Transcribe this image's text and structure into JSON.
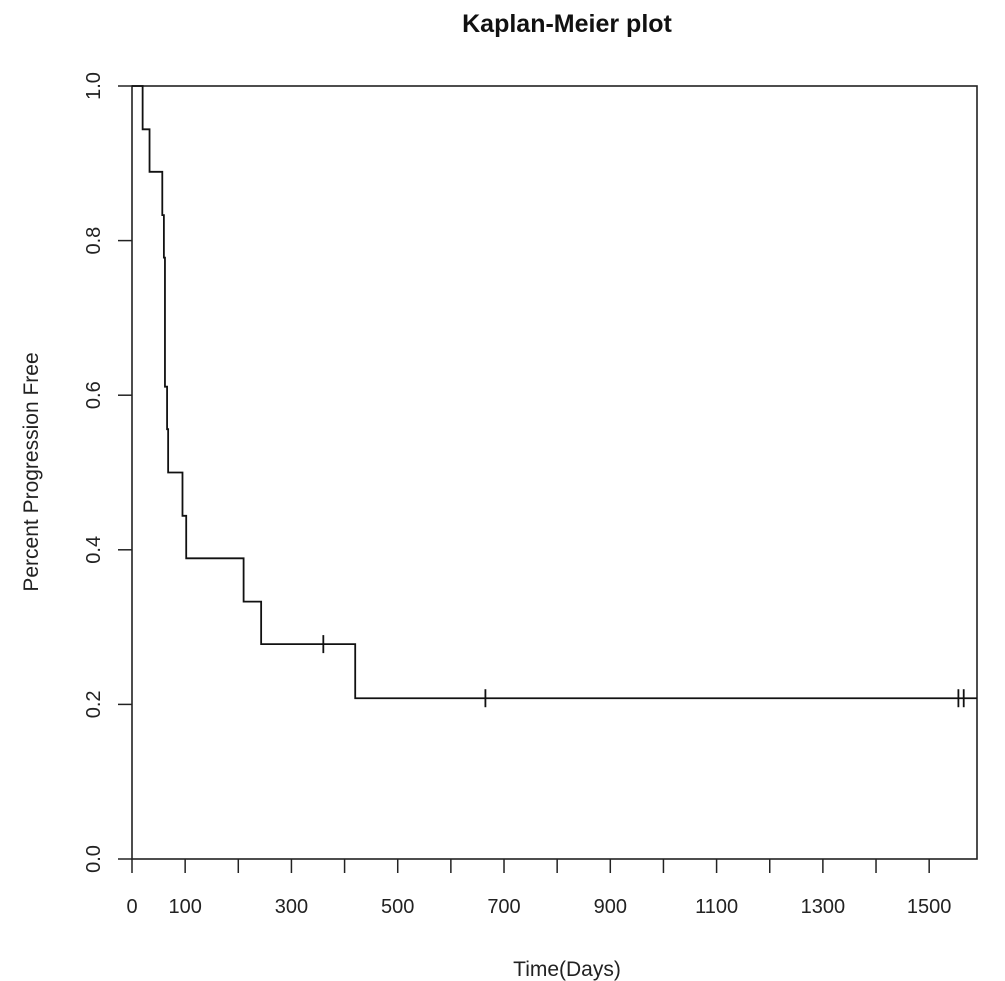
{
  "chart_data": {
    "type": "line",
    "title": "Kaplan-Meier plot",
    "xlabel": "Time(Days)",
    "ylabel": "Percent Progression Free",
    "xlim": [
      0,
      1590
    ],
    "ylim": [
      0,
      1.0
    ],
    "x_ticks": [
      0,
      100,
      200,
      300,
      400,
      500,
      600,
      700,
      800,
      900,
      1000,
      1100,
      1200,
      1300,
      1400,
      1500
    ],
    "x_tick_labels": [
      "0",
      "100",
      "",
      "300",
      "",
      "500",
      "",
      "700",
      "",
      "900",
      "",
      "1100",
      "",
      "1300",
      "",
      "1500"
    ],
    "y_ticks": [
      0.0,
      0.2,
      0.4,
      0.6,
      0.8,
      1.0
    ],
    "y_tick_labels": [
      "0.0",
      "0.2",
      "0.4",
      "0.6",
      "0.8",
      "1.0"
    ],
    "grid": false,
    "legend": "none",
    "line_color": "#111111",
    "series": [
      {
        "step_times": [
          0,
          20,
          33,
          57,
          60,
          62,
          66,
          68,
          95,
          102,
          210,
          243,
          420,
          1590
        ],
        "survival": [
          1.0,
          0.944,
          0.889,
          0.833,
          0.778,
          0.611,
          0.556,
          0.5,
          0.444,
          0.389,
          0.333,
          0.278,
          0.208,
          0.208
        ],
        "censored_times": [
          360,
          665,
          1555,
          1565
        ],
        "censored_survival": [
          0.278,
          0.208,
          0.208,
          0.208
        ]
      }
    ]
  }
}
